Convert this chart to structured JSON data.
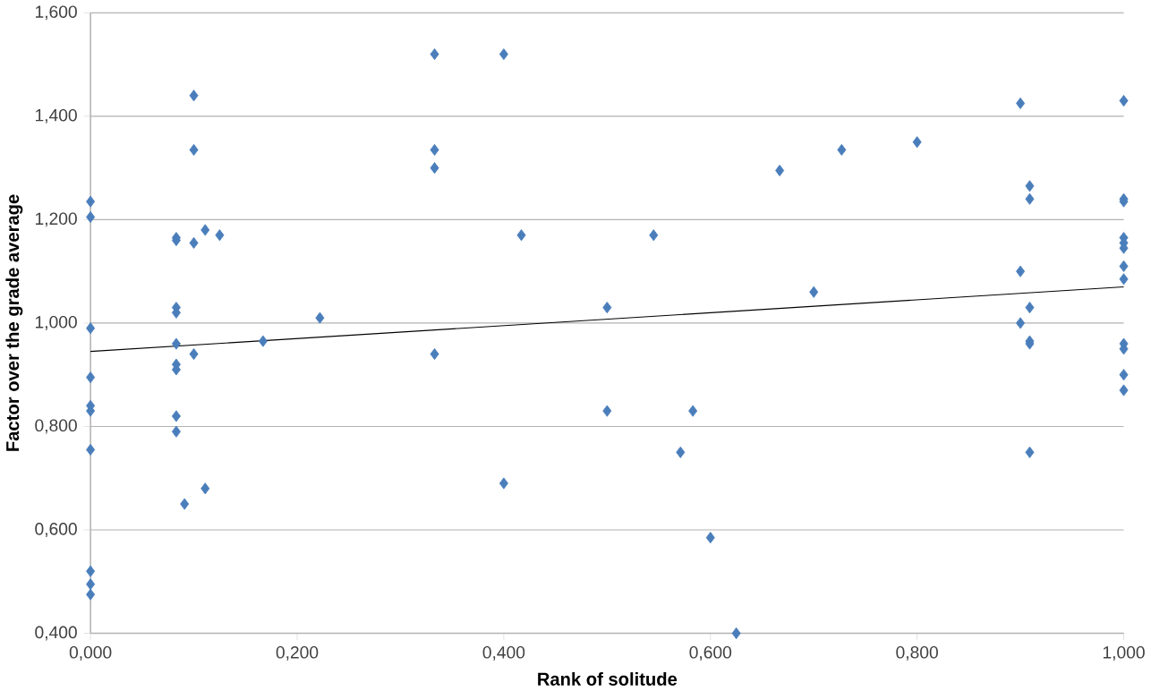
{
  "chart_data": {
    "type": "scatter",
    "xlabel": "Rank of solitude",
    "ylabel": "Factor over the grade average",
    "marker": "diamond",
    "grid": "y",
    "xlim": [
      0,
      1
    ],
    "ylim": [
      0.4,
      1.6
    ],
    "xticks": [
      {
        "value": 0,
        "label": "0,000"
      },
      {
        "value": 0.2,
        "label": "0,200"
      },
      {
        "value": 0.4,
        "label": "0,400"
      },
      {
        "value": 0.6,
        "label": "0,600"
      },
      {
        "value": 0.8,
        "label": "0,800"
      },
      {
        "value": 1,
        "label": "1,000"
      }
    ],
    "yticks": [
      {
        "value": 0.4,
        "label": "0,400"
      },
      {
        "value": 0.6,
        "label": "0,600"
      },
      {
        "value": 0.8,
        "label": "0,800"
      },
      {
        "value": 1.0,
        "label": "1,000"
      },
      {
        "value": 1.2,
        "label": "1,200"
      },
      {
        "value": 1.4,
        "label": "1,400"
      },
      {
        "value": 1.6,
        "label": "1,600"
      }
    ],
    "series": [
      {
        "color": "#4a7ebb",
        "x": [
          0,
          0,
          0,
          0,
          0,
          0,
          0,
          0,
          0,
          0,
          0.083,
          0.083,
          0.083,
          0.083,
          0.083,
          0.083,
          0.083,
          0.083,
          0.083,
          0.091,
          0.1,
          0.1,
          0.1,
          0.1,
          0.111,
          0.125,
          0.111,
          0.167,
          0.222,
          0.333,
          0.333,
          0.333,
          0.333,
          0.4,
          0.4,
          0.417,
          0.5,
          0.5,
          0.545,
          0.571,
          0.583,
          0.6,
          0.625,
          0.667,
          0.7,
          0.727,
          0.8,
          0.9,
          0.9,
          0.9,
          0.909,
          0.909,
          0.909,
          0.909,
          0.909,
          0.909,
          1,
          1,
          1,
          1,
          1,
          1,
          1,
          1,
          1,
          1,
          1,
          1
        ],
        "values": [
          1.235,
          1.205,
          0.99,
          0.895,
          0.84,
          0.83,
          0.755,
          0.52,
          0.495,
          0.475,
          1.165,
          1.16,
          1.03,
          1.02,
          0.96,
          0.92,
          0.91,
          0.82,
          0.79,
          0.65,
          1.44,
          1.335,
          1.155,
          0.94,
          1.18,
          1.17,
          0.68,
          0.965,
          1.01,
          1.52,
          1.335,
          1.3,
          0.94,
          1.52,
          0.69,
          1.17,
          1.03,
          0.83,
          1.17,
          0.75,
          0.83,
          0.585,
          0.4,
          1.295,
          1.06,
          1.335,
          1.35,
          1.425,
          1.1,
          1.0,
          1.265,
          1.24,
          1.03,
          0.965,
          0.96,
          0.75,
          1.43,
          1.24,
          1.235,
          1.165,
          1.155,
          1.145,
          1.11,
          1.085,
          0.96,
          0.95,
          0.9,
          0.87
        ]
      },
      {
        "type": "line",
        "color": "#000000",
        "marker": "none",
        "x": [
          0,
          1
        ],
        "values": [
          0.945,
          1.07
        ]
      }
    ]
  }
}
